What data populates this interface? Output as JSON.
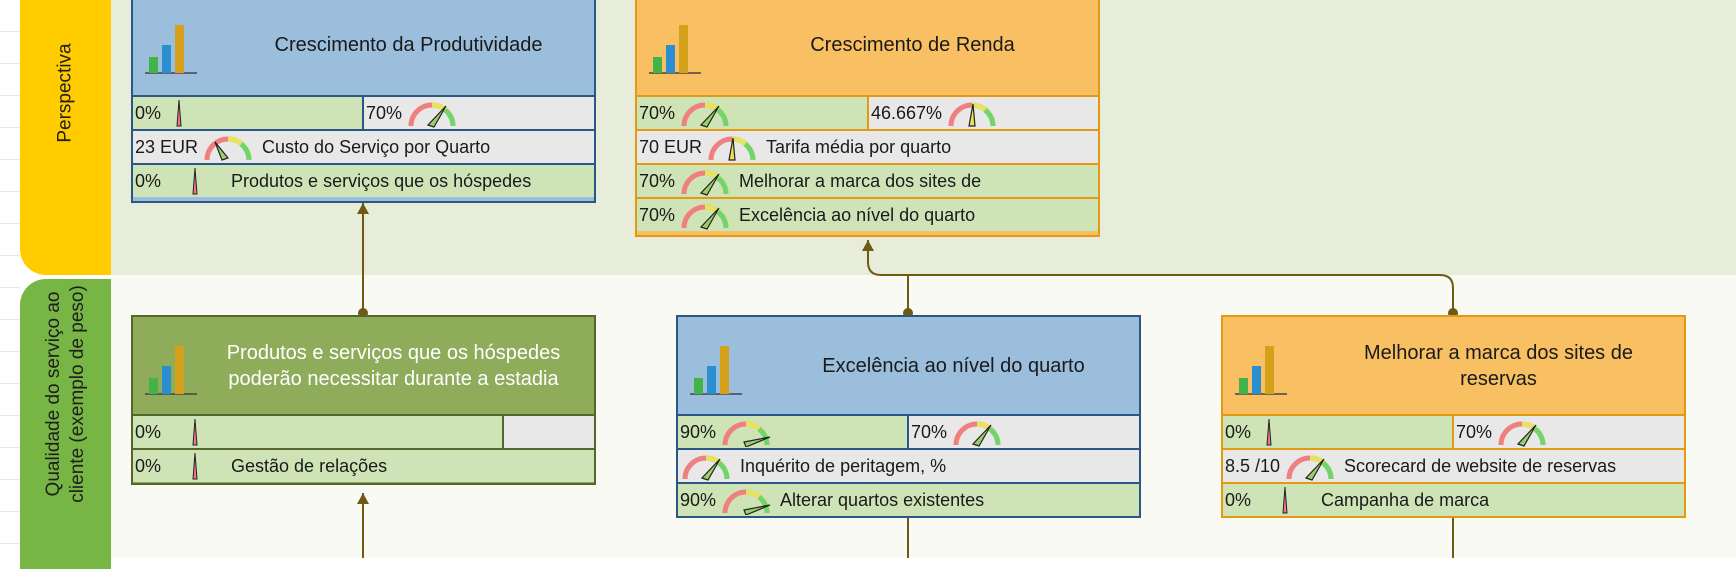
{
  "lanes": {
    "top_label": "Perspectiva",
    "bottom_label_line1": "Qualidade do serviço ao",
    "bottom_label_line2": "cliente (exemplo de peso)"
  },
  "colors": {
    "blue_card": "#9bbedc",
    "orange_card": "#f8c062",
    "olive_card": "#8fac5b",
    "good_fill": "#cfe4b6",
    "grey_fill": "#e8e8e8",
    "connector": "#6e5a12"
  },
  "cards": {
    "prod": {
      "title": "Crescimento da Produtividade",
      "r1_left": "0%",
      "r1_right": "70%",
      "r2_value": "23 EUR",
      "r2_label": "Custo do Serviço por Quarto",
      "r3_value": "0%",
      "r3_label": "Produtos e serviços que os hóspedes"
    },
    "renda": {
      "title": "Crescimento de Renda",
      "r1_left": "70%",
      "r1_right": "46.667%",
      "r2_value": "70 EUR",
      "r2_label": "Tarifa média por quarto",
      "r3_value": "70%",
      "r3_label": "Melhorar a marca dos sites de",
      "r4_value": "70%",
      "r4_label": "Excelência ao nível do quarto"
    },
    "produtos": {
      "title_line1": "Produtos e serviços que os hóspedes",
      "title_line2": "poderão necessitar durante a estadia",
      "r1_left": "0%",
      "r2_value": "0%",
      "r2_label": "Gestão de relações"
    },
    "excel": {
      "title": "Excelência ao nível do quarto",
      "r1_left": "90%",
      "r1_right": "70%",
      "r2_label": "Inquérito de peritagem, %",
      "r3_value": "90%",
      "r3_label": "Alterar quartos existentes"
    },
    "marca": {
      "title_line1": "Melhorar a marca dos sites de",
      "title_line2": "reservas",
      "r1_left": "0%",
      "r1_right": "70%",
      "r2_value": "8.5 /10",
      "r2_label": "Scorecard de website de reservas",
      "r3_value": "0%",
      "r3_label": "Campanha de marca"
    }
  },
  "icons": [
    "bar-chart-icon",
    "gauge-icon",
    "needle-icon"
  ]
}
